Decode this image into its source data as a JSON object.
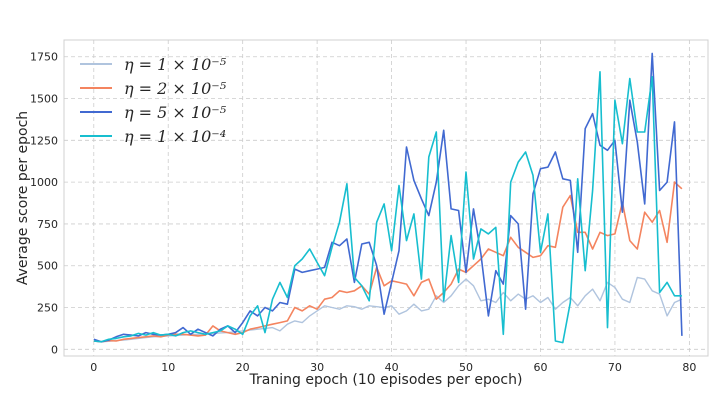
{
  "chart_data": {
    "type": "line",
    "title": "",
    "xlabel": "Traning epoch (10 episodes per epoch)",
    "ylabel": "Average score per epoch",
    "xlim": [
      -4,
      82.5
    ],
    "ylim": [
      -40,
      1850
    ],
    "xticks": [
      0,
      10,
      20,
      30,
      40,
      50,
      60,
      70,
      80
    ],
    "yticks": [
      0,
      250,
      500,
      750,
      1000,
      1250,
      1500,
      1750
    ],
    "grid": true,
    "legend_position": "top-left",
    "series": [
      {
        "name": "η = 1 × 10⁻⁵",
        "color": "#b0c4de",
        "values": [
          50,
          45,
          48,
          52,
          55,
          60,
          65,
          70,
          75,
          78,
          80,
          82,
          85,
          88,
          90,
          92,
          95,
          98,
          100,
          105,
          110,
          115,
          120,
          125,
          130,
          110,
          150,
          170,
          160,
          200,
          230,
          260,
          250,
          240,
          260,
          255,
          240,
          260,
          255,
          250,
          260,
          210,
          230,
          270,
          230,
          240,
          320,
          280,
          320,
          380,
          420,
          380,
          290,
          300,
          280,
          340,
          290,
          330,
          300,
          320,
          280,
          310,
          240,
          280,
          310,
          260,
          320,
          360,
          290,
          400,
          370,
          300,
          280,
          430,
          420,
          350,
          330,
          200,
          280,
          300
        ]
      },
      {
        "name": "η = 2 × 10⁻⁵",
        "color": "#f4845f",
        "values": [
          50,
          45,
          52,
          50,
          60,
          65,
          70,
          75,
          80,
          75,
          85,
          90,
          90,
          85,
          80,
          85,
          140,
          110,
          100,
          90,
          100,
          120,
          130,
          140,
          150,
          160,
          170,
          250,
          230,
          260,
          240,
          300,
          310,
          350,
          340,
          350,
          380,
          330,
          490,
          380,
          410,
          400,
          390,
          320,
          400,
          420,
          300,
          340,
          390,
          480,
          460,
          500,
          540,
          600,
          580,
          560,
          670,
          610,
          580,
          550,
          560,
          620,
          610,
          850,
          920,
          700,
          700,
          600,
          700,
          680,
          690,
          880,
          650,
          600,
          820,
          760,
          830,
          640,
          1000,
          960
        ]
      },
      {
        "name": "η = 5 × 10⁻⁵",
        "color": "#4169d1",
        "values": [
          60,
          45,
          55,
          75,
          90,
          85,
          80,
          100,
          90,
          85,
          90,
          100,
          130,
          90,
          120,
          100,
          80,
          120,
          140,
          100,
          160,
          230,
          200,
          250,
          230,
          280,
          270,
          480,
          460,
          470,
          480,
          490,
          640,
          620,
          660,
          400,
          630,
          640,
          500,
          210,
          400,
          590,
          1210,
          1010,
          900,
          800,
          1000,
          1310,
          840,
          830,
          460,
          840,
          570,
          200,
          470,
          390,
          800,
          750,
          240,
          930,
          1080,
          1090,
          1180,
          1020,
          1010,
          580,
          1320,
          1410,
          1220,
          1190,
          1250,
          820,
          1490,
          1240,
          870,
          1770,
          950,
          1000,
          1360,
          80
        ]
      },
      {
        "name": "η = 1 × 10⁻⁴",
        "color": "#17becf",
        "values": [
          50,
          45,
          60,
          65,
          75,
          80,
          95,
          85,
          100,
          85,
          90,
          80,
          100,
          110,
          100,
          90,
          100,
          110,
          140,
          120,
          90,
          200,
          260,
          100,
          300,
          400,
          310,
          500,
          540,
          600,
          520,
          440,
          610,
          760,
          990,
          430,
          380,
          290,
          760,
          870,
          590,
          980,
          650,
          810,
          420,
          1150,
          1300,
          290,
          680,
          400,
          1060,
          540,
          720,
          690,
          730,
          90,
          1000,
          1120,
          1180,
          1040,
          580,
          810,
          50,
          40,
          280,
          1020,
          470,
          950,
          1660,
          130,
          1490,
          1230,
          1620,
          1300,
          1300,
          1630,
          340,
          400,
          320,
          320
        ]
      }
    ]
  }
}
